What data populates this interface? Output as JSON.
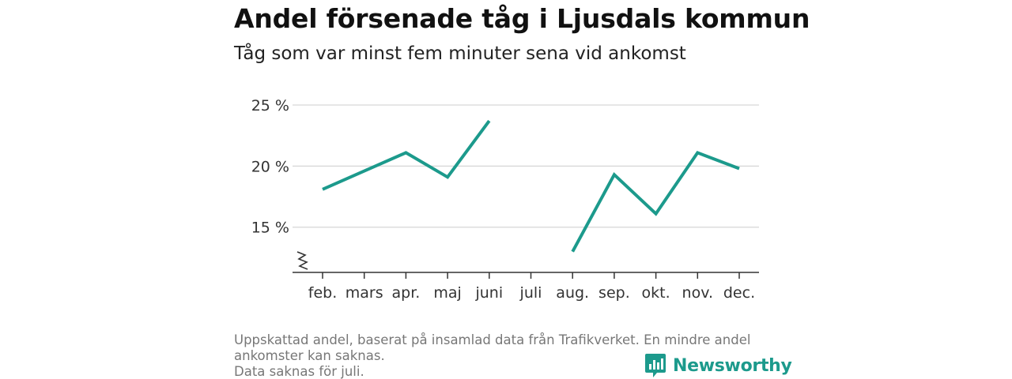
{
  "title": "Andel försenade tåg i Ljusdals kommun",
  "subtitle": "Tåg som var minst fem minuter sena vid ankomst",
  "footnote": {
    "line1": "Uppskattad andel, baserat på insamlad data från Trafikverket. En mindre andel",
    "line2": "ankomster kan saknas.",
    "line3": "Data saknas för juli."
  },
  "logo": {
    "name": "Newsworthy",
    "icon": "newsworthy-logo-icon",
    "color": "#1c9a8c"
  },
  "chart_data": {
    "type": "line",
    "title": "Andel försenade tåg i Ljusdals kommun",
    "subtitle": "Tåg som var minst fem minuter sena vid ankomst",
    "xlabel": "",
    "ylabel": "",
    "categories": [
      "feb.",
      "mars",
      "apr.",
      "maj",
      "juni",
      "juli",
      "aug.",
      "sep.",
      "okt.",
      "nov.",
      "dec."
    ],
    "series": [
      {
        "values": [
          18.1,
          19.6,
          21.1,
          19.1,
          23.7,
          null,
          13.0,
          19.3,
          16.1,
          21.1,
          19.8
        ],
        "color": "#1c9a8c"
      }
    ],
    "yticks": [
      15,
      20,
      25
    ],
    "ytick_labels": [
      "15 %",
      "20 %",
      "25 %"
    ],
    "ylim": [
      11.3,
      25
    ],
    "axis_break": true,
    "grid": true,
    "legend": "none"
  }
}
